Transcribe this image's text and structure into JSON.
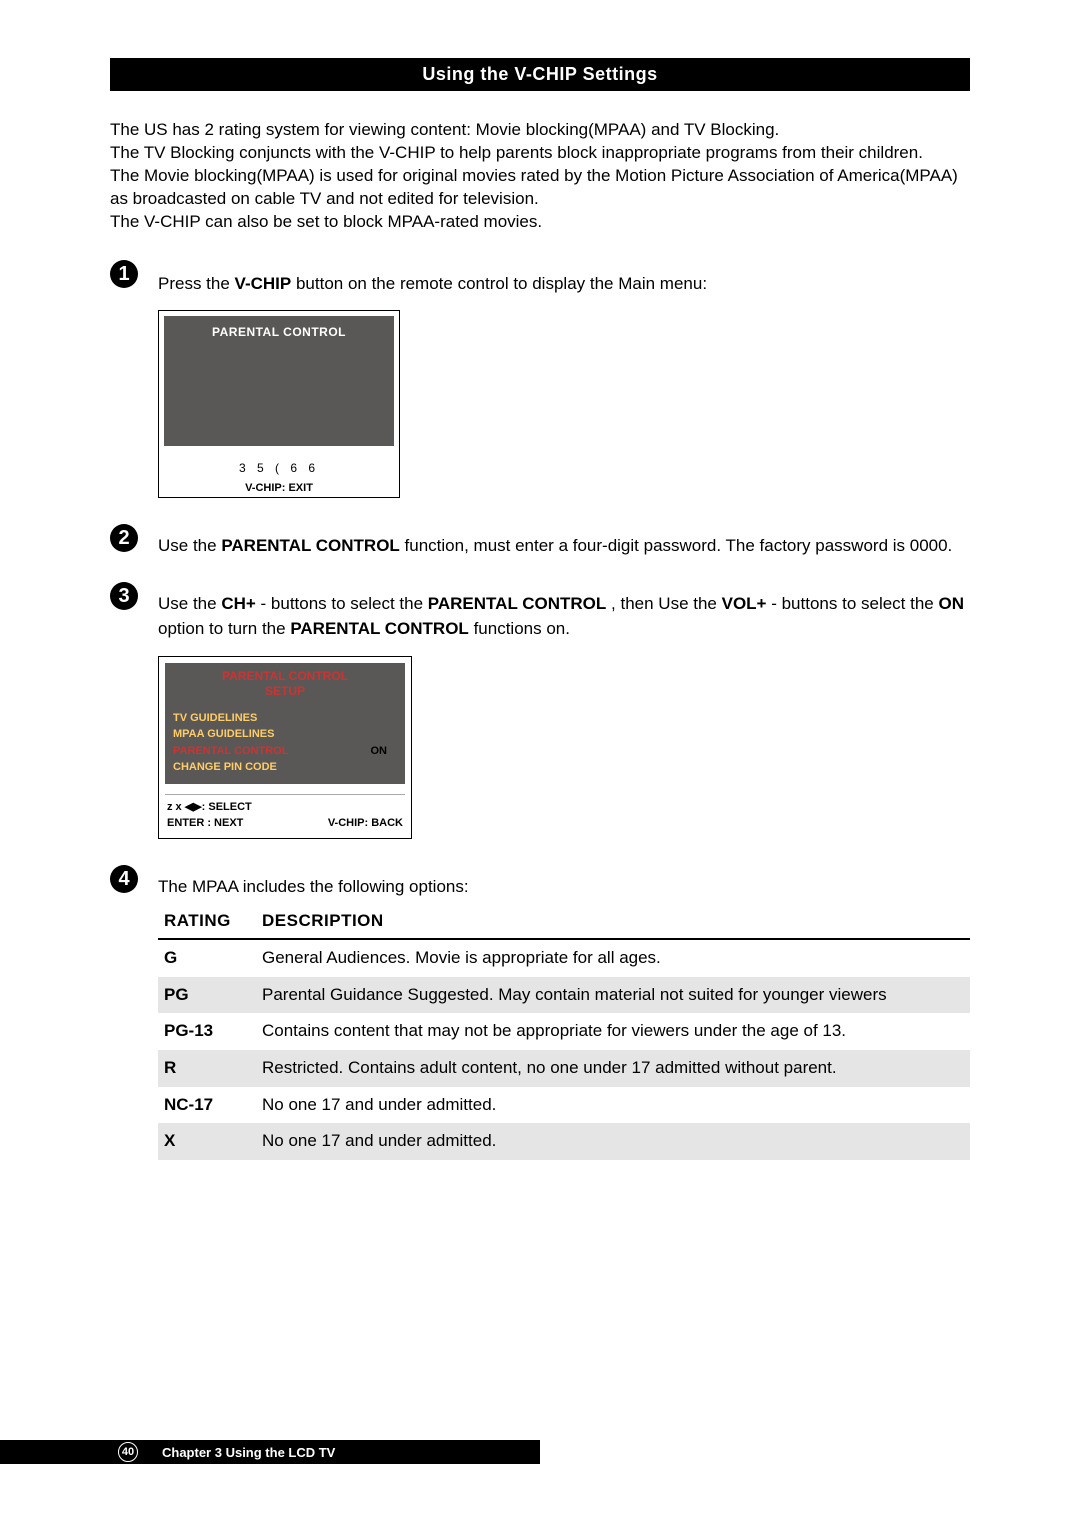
{
  "colors": {
    "page_bg": "#ffffff",
    "text": "#000000",
    "bar_bg": "#000000",
    "bar_text": "#ffffff",
    "osd_bg": "#5a5856",
    "osd_highlight": "#ffcc66",
    "osd_selected": "#cc3333",
    "alt_row": "#e5e5e5"
  },
  "title_bar": "Using  the V-CHIP Settings",
  "intro": {
    "p1": "The US has 2 rating system for viewing content: Movie blocking(MPAA) and TV Blocking.",
    "p2": "The TV Blocking conjuncts  with the V-CHIP  to help parents block inappropriate programs from their children.",
    "p3": "The Movie blocking(MPAA) is used for original movies rated by the Motion Picture Association of America(MPAA) as broadcasted on cable TV and not edited for television.",
    "p4": "The V-CHIP can also be set to block MPAA-rated movies."
  },
  "step1": {
    "num": "1",
    "pre": "Press the ",
    "btn": "V-CHIP",
    "post": " button on the remote control to display the Main menu:",
    "osd": {
      "header": "PARENTAL CONTROL",
      "code": "3 5 ( 6 6",
      "footer": "V-CHIP:  EXIT"
    }
  },
  "step2": {
    "num": "2",
    "t1": "Use the ",
    "b1": "PARENTAL CONTROL",
    "t2": " function, must enter a four-digit password. The factory password is 0000."
  },
  "step3": {
    "num": "3",
    "t1": "Use the ",
    "b1": "CH+",
    "t2": "- buttons to select the ",
    "b2": "PARENTAL CONTROL",
    "t3": ", then Use the ",
    "b3": "VOL+",
    "t4": "- buttons to select the ",
    "b4": "ON",
    "t5": " option to turn the ",
    "b5": "PARENTAL CONTROL",
    "t6": " functions on.",
    "osd": {
      "title1": "PARENTAL CONTROL",
      "title2": "SETUP",
      "m1": "TV GUIDELINES",
      "m2": "MPAA GUIDELINES",
      "m3": "PARENTAL CONTROL",
      "m3v": "ON",
      "m4": "CHANGE PIN CODE",
      "h1": "z x ◀▶: SELECT",
      "h2a": "ENTER : NEXT",
      "h2b": "V-CHIP:  BACK"
    }
  },
  "step4": {
    "num": "4",
    "lead": "The MPAA includes the following options:",
    "table": {
      "col1": "RATING",
      "col2": "DESCRIPTION",
      "rows": [
        {
          "r": "G",
          "d": "General Audiences.  Movie is appropriate for all ages."
        },
        {
          "r": "PG",
          "d": "Parental Guidance Suggested. May contain material not suited for younger viewers"
        },
        {
          "r": "PG-13",
          "d": "Contains content that may not be appropriate for viewers under the age of 13."
        },
        {
          "r": "R",
          "d": "Restricted. Contains adult content, no one under 17 admitted without parent."
        },
        {
          "r": "NC-17",
          "d": "No one 17 and under admitted."
        },
        {
          "r": "X",
          "d": "No one 17 and under admitted."
        }
      ]
    }
  },
  "footer": {
    "page": "40",
    "chapter": "Chapter 3 Using the LCD TV"
  }
}
